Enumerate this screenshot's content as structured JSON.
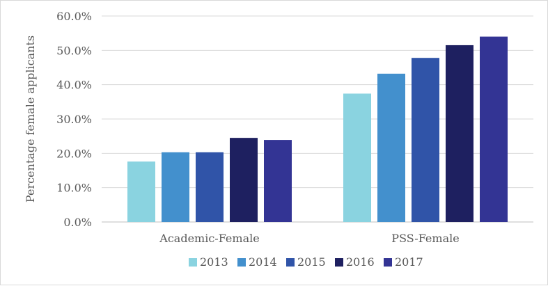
{
  "chart_data": {
    "type": "bar",
    "categories": [
      "Academic-Female",
      "PSS-Female"
    ],
    "series": [
      {
        "name": "2013",
        "values": [
          17.6,
          37.4
        ],
        "color": "#8ad3e0"
      },
      {
        "name": "2014",
        "values": [
          20.3,
          43.2
        ],
        "color": "#4390cd"
      },
      {
        "name": "2015",
        "values": [
          20.3,
          47.8
        ],
        "color": "#3054a8"
      },
      {
        "name": "2016",
        "values": [
          24.5,
          51.5
        ],
        "color": "#1e2060"
      },
      {
        "name": "2017",
        "values": [
          23.9,
          54.0
        ],
        "color": "#333494"
      }
    ],
    "ylabel": "Percentage female applicants",
    "ylim": [
      0,
      60
    ],
    "yticks": [
      "0.0%",
      "10.0%",
      "20.0%",
      "30.0%",
      "40.0%",
      "50.0%",
      "60.0%"
    ],
    "grid": true,
    "legend_position": "bottom"
  }
}
